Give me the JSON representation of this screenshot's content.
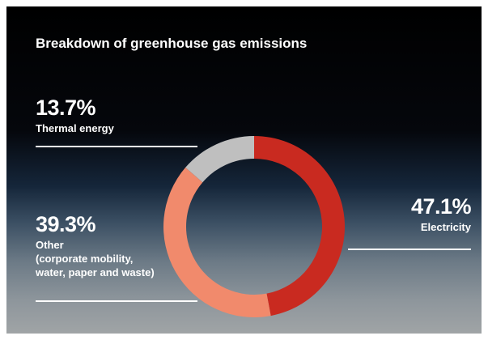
{
  "chart_data": {
    "type": "donut",
    "title": "Breakdown of greenhouse gas emissions",
    "categories": [
      "Electricity",
      "Other\n(corporate mobility,\nwater, paper and waste)",
      "Thermal energy"
    ],
    "values": [
      47.1,
      39.3,
      13.7
    ],
    "value_labels": [
      "47.1%",
      "39.3%",
      "13.7%"
    ],
    "colors": [
      "#c92a20",
      "#f18a6c",
      "#bfbfbf"
    ]
  }
}
